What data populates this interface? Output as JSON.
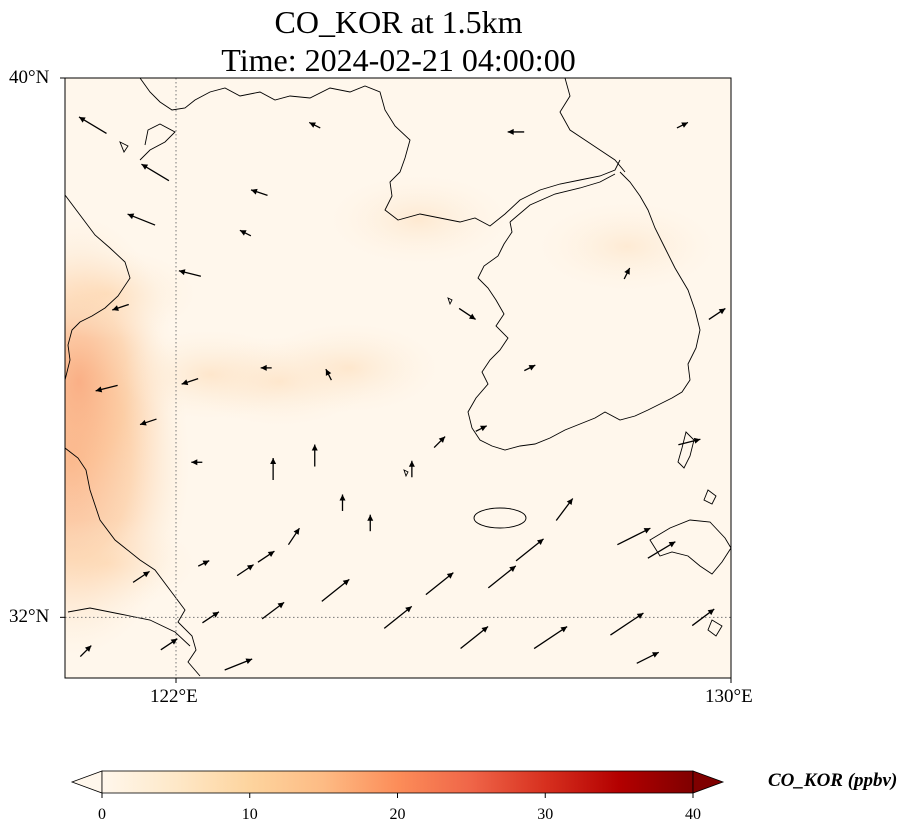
{
  "title": {
    "line1": "CO_KOR at 1.5km",
    "line2": "Time: 2024-02-21 04:00:00"
  },
  "map": {
    "lon_range": [
      120.4,
      130.0
    ],
    "lat_range": [
      31.1,
      40.0
    ],
    "lat_ticks": [
      {
        "value": 40,
        "label": "40°N"
      },
      {
        "value": 32,
        "label": "32°N"
      }
    ],
    "lon_ticks": [
      {
        "value": 122,
        "label": "122°E"
      },
      {
        "value": 130,
        "label": "130°E"
      }
    ],
    "gridlines": "dotted"
  },
  "colorbar": {
    "colormap": "OrRd",
    "min": 0,
    "max": 40,
    "ticks": [
      0,
      10,
      20,
      30,
      40
    ],
    "label": "CO_KOR (ppbv)",
    "extend": "both"
  },
  "chart_data": {
    "type": "heatmap",
    "field": "CO_KOR",
    "unit": "ppbv",
    "level": "1.5km",
    "concentration_regions": [
      {
        "lon": 120.5,
        "lat": 34.3,
        "value": 16
      },
      {
        "lon": 120.6,
        "lat": 35.5,
        "value": 9
      },
      {
        "lon": 121.0,
        "lat": 36.8,
        "value": 6
      },
      {
        "lon": 122.5,
        "lat": 35.6,
        "value": 5
      },
      {
        "lon": 123.5,
        "lat": 35.5,
        "value": 4
      },
      {
        "lon": 124.5,
        "lat": 35.7,
        "value": 4
      },
      {
        "lon": 125.5,
        "lat": 37.9,
        "value": 3
      },
      {
        "lon": 121.0,
        "lat": 32.8,
        "value": 4
      },
      {
        "lon": 128.5,
        "lat": 37.5,
        "value": 2
      }
    ],
    "wind_vectors": [
      {
        "lon": 120.8,
        "lat": 39.3,
        "u": -5,
        "v": 3
      },
      {
        "lon": 121.5,
        "lat": 37.9,
        "u": -5,
        "v": 2
      },
      {
        "lon": 121.7,
        "lat": 38.6,
        "u": -5,
        "v": 3
      },
      {
        "lon": 122.2,
        "lat": 37.1,
        "u": -4,
        "v": 1
      },
      {
        "lon": 123.0,
        "lat": 37.7,
        "u": -2,
        "v": 1
      },
      {
        "lon": 123.2,
        "lat": 38.3,
        "u": -3,
        "v": 1
      },
      {
        "lon": 121.2,
        "lat": 36.6,
        "u": -3,
        "v": -1
      },
      {
        "lon": 121.0,
        "lat": 35.4,
        "u": -4,
        "v": -1
      },
      {
        "lon": 122.2,
        "lat": 35.5,
        "u": -3,
        "v": -1
      },
      {
        "lon": 123.3,
        "lat": 35.7,
        "u": -2,
        "v": 0
      },
      {
        "lon": 124.2,
        "lat": 35.6,
        "u": -1,
        "v": 2
      },
      {
        "lon": 121.6,
        "lat": 34.9,
        "u": -3,
        "v": -1
      },
      {
        "lon": 122.3,
        "lat": 34.3,
        "u": -2,
        "v": 0
      },
      {
        "lon": 123.4,
        "lat": 34.2,
        "u": 0,
        "v": 4
      },
      {
        "lon": 124.0,
        "lat": 34.4,
        "u": 0,
        "v": 4
      },
      {
        "lon": 124.4,
        "lat": 33.7,
        "u": 0,
        "v": 3
      },
      {
        "lon": 124.8,
        "lat": 33.4,
        "u": 0,
        "v": 3
      },
      {
        "lon": 125.4,
        "lat": 34.2,
        "u": 0,
        "v": 3
      },
      {
        "lon": 125.8,
        "lat": 34.6,
        "u": 2,
        "v": 2
      },
      {
        "lon": 126.4,
        "lat": 34.8,
        "u": 2,
        "v": 1
      },
      {
        "lon": 126.2,
        "lat": 36.5,
        "u": 3,
        "v": -2
      },
      {
        "lon": 127.1,
        "lat": 35.7,
        "u": 2,
        "v": 1
      },
      {
        "lon": 129.4,
        "lat": 34.6,
        "u": 4,
        "v": 1
      },
      {
        "lon": 128.5,
        "lat": 37.1,
        "u": 1,
        "v": 2
      },
      {
        "lon": 129.8,
        "lat": 36.5,
        "u": 3,
        "v": 2
      },
      {
        "lon": 124.0,
        "lat": 39.3,
        "u": -2,
        "v": 1
      },
      {
        "lon": 126.9,
        "lat": 39.2,
        "u": -3,
        "v": 0
      },
      {
        "lon": 129.3,
        "lat": 39.3,
        "u": 2,
        "v": 1
      },
      {
        "lon": 121.5,
        "lat": 32.6,
        "u": 3,
        "v": 2
      },
      {
        "lon": 122.5,
        "lat": 32.0,
        "u": 3,
        "v": 2
      },
      {
        "lon": 123.0,
        "lat": 32.7,
        "u": 3,
        "v": 2
      },
      {
        "lon": 123.4,
        "lat": 32.1,
        "u": 4,
        "v": 3
      },
      {
        "lon": 124.3,
        "lat": 32.4,
        "u": 5,
        "v": 4
      },
      {
        "lon": 125.2,
        "lat": 32.0,
        "u": 5,
        "v": 4
      },
      {
        "lon": 125.8,
        "lat": 32.5,
        "u": 5,
        "v": 4
      },
      {
        "lon": 126.3,
        "lat": 31.7,
        "u": 5,
        "v": 4
      },
      {
        "lon": 126.7,
        "lat": 32.6,
        "u": 5,
        "v": 4
      },
      {
        "lon": 127.4,
        "lat": 31.7,
        "u": 6,
        "v": 4
      },
      {
        "lon": 128.5,
        "lat": 31.9,
        "u": 6,
        "v": 4
      },
      {
        "lon": 129.6,
        "lat": 32.0,
        "u": 4,
        "v": 3
      },
      {
        "lon": 127.1,
        "lat": 33.0,
        "u": 5,
        "v": 4
      },
      {
        "lon": 128.6,
        "lat": 33.2,
        "u": 6,
        "v": 3
      },
      {
        "lon": 129.0,
        "lat": 33.0,
        "u": 5,
        "v": 3
      },
      {
        "lon": 127.6,
        "lat": 33.6,
        "u": 3,
        "v": 4
      },
      {
        "lon": 123.7,
        "lat": 33.2,
        "u": 2,
        "v": 3
      },
      {
        "lon": 123.3,
        "lat": 32.9,
        "u": 3,
        "v": 2
      },
      {
        "lon": 122.4,
        "lat": 32.8,
        "u": 2,
        "v": 1
      },
      {
        "lon": 121.9,
        "lat": 31.6,
        "u": 3,
        "v": 2
      },
      {
        "lon": 122.9,
        "lat": 31.3,
        "u": 5,
        "v": 2
      },
      {
        "lon": 128.8,
        "lat": 31.4,
        "u": 4,
        "v": 2
      },
      {
        "lon": 120.7,
        "lat": 31.5,
        "u": 2,
        "v": 2
      }
    ]
  }
}
